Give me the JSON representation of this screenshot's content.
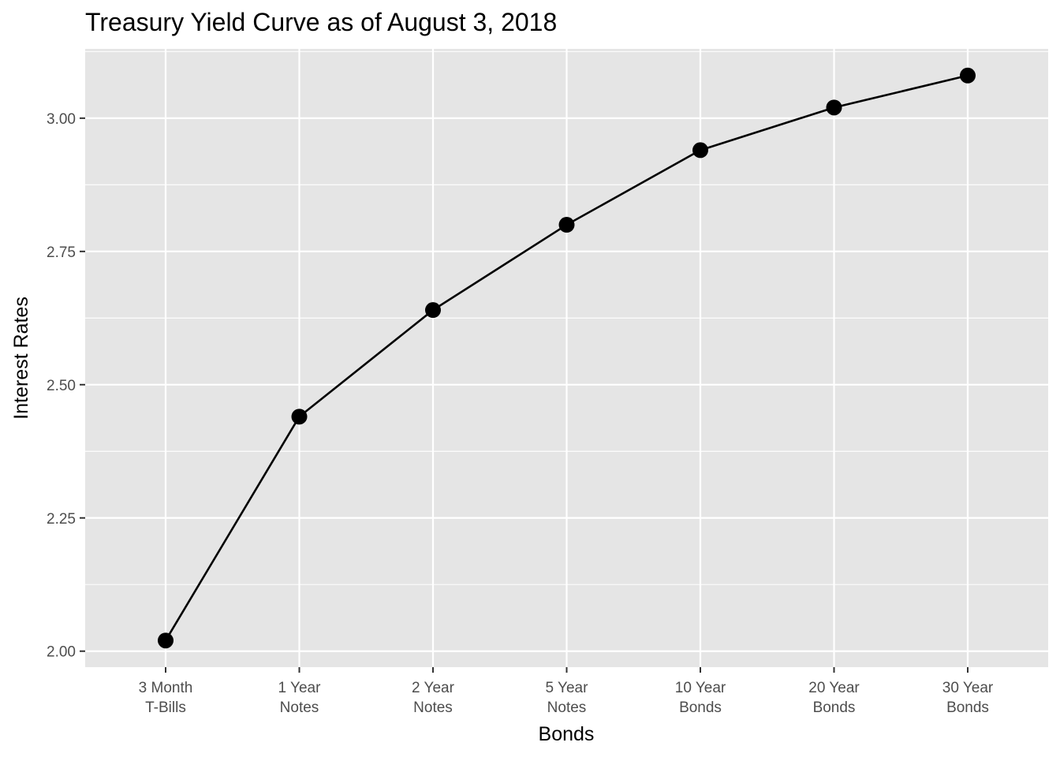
{
  "chart_data": {
    "type": "line",
    "title": "Treasury Yield Curve as of August 3, 2018",
    "xlabel": "Bonds",
    "ylabel": "Interest Rates",
    "categories": [
      [
        "3 Month",
        "T-Bills"
      ],
      [
        "1 Year",
        "Notes"
      ],
      [
        "2 Year",
        "Notes"
      ],
      [
        "5 Year",
        "Notes"
      ],
      [
        "10 Year",
        "Bonds"
      ],
      [
        "20 Year",
        "Bonds"
      ],
      [
        "30 Year",
        "Bonds"
      ]
    ],
    "series": [
      {
        "values": [
          2.02,
          2.44,
          2.64,
          2.8,
          2.94,
          3.02,
          3.08
        ],
        "markers": true
      }
    ],
    "ylim": [
      1.97,
      3.13
    ],
    "yticks": [
      2.0,
      2.25,
      2.5,
      2.75,
      3.0
    ],
    "ytick_labels": [
      "2.00",
      "2.25",
      "2.50",
      "2.75",
      "3.00"
    ],
    "grid": true,
    "legend": "none",
    "colors": {
      "panel_background": "#e5e5e5",
      "grid_major": "#ffffff",
      "line": "#000000",
      "point": "#000000",
      "tick_text": "#4d4d4d",
      "tick_mark": "#333333"
    }
  }
}
